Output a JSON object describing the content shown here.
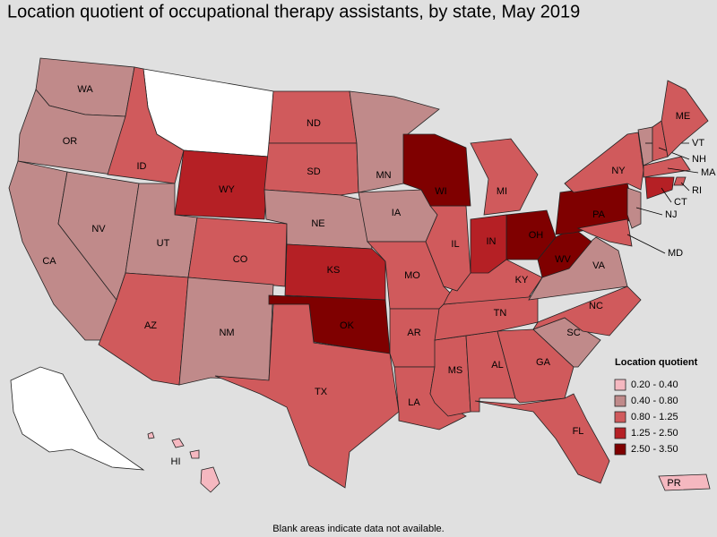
{
  "title": "Location quotient of occupational therapy assistants, by state, May 2019",
  "footnote": "Blank areas indicate data not available.",
  "legend": {
    "title": "Location quotient",
    "items": [
      {
        "label": "0.20 - 0.40",
        "color": "#f5b8c0"
      },
      {
        "label": "0.40 - 0.80",
        "color": "#c08a8a"
      },
      {
        "label": "0.80 - 1.25",
        "color": "#d05a5c"
      },
      {
        "label": "1.25 - 2.50",
        "color": "#b52025"
      },
      {
        "label": "2.50 - 3.50",
        "color": "#7f0000"
      }
    ]
  },
  "states": [
    {
      "label": "WA",
      "color": "#c08a8a"
    },
    {
      "label": "OR",
      "color": "#c08a8a"
    },
    {
      "label": "CA",
      "color": "#c08a8a"
    },
    {
      "label": "NV",
      "color": "#c08a8a"
    },
    {
      "label": "ID",
      "color": "#d05a5c"
    },
    {
      "label": "WY",
      "color": "#b52025"
    },
    {
      "label": "UT",
      "color": "#c08a8a"
    },
    {
      "label": "CO",
      "color": "#d05a5c"
    },
    {
      "label": "AZ",
      "color": "#d05a5c"
    },
    {
      "label": "NM",
      "color": "#c08a8a"
    },
    {
      "label": "ND",
      "color": "#d05a5c"
    },
    {
      "label": "SD",
      "color": "#d05a5c"
    },
    {
      "label": "NE",
      "color": "#c08a8a"
    },
    {
      "label": "KS",
      "color": "#b52025"
    },
    {
      "label": "OK",
      "color": "#7f0000"
    },
    {
      "label": "TX",
      "color": "#d05a5c"
    },
    {
      "label": "MN",
      "color": "#c08a8a"
    },
    {
      "label": "IA",
      "color": "#c08a8a"
    },
    {
      "label": "MO",
      "color": "#d05a5c"
    },
    {
      "label": "AR",
      "color": "#d05a5c"
    },
    {
      "label": "LA",
      "color": "#d05a5c"
    },
    {
      "label": "MS",
      "color": "#d05a5c"
    },
    {
      "label": "AL",
      "color": "#d05a5c"
    },
    {
      "label": "GA",
      "color": "#d05a5c"
    },
    {
      "label": "FL",
      "color": "#d05a5c"
    },
    {
      "label": "SC",
      "color": "#c08a8a"
    },
    {
      "label": "NC",
      "color": "#d05a5c"
    },
    {
      "label": "TN",
      "color": "#d05a5c"
    },
    {
      "label": "KY",
      "color": "#d05a5c"
    },
    {
      "label": "VA",
      "color": "#c08a8a"
    },
    {
      "label": "WV",
      "color": "#7f0000"
    },
    {
      "label": "OH",
      "color": "#7f0000"
    },
    {
      "label": "IN",
      "color": "#b52025"
    },
    {
      "label": "IL",
      "color": "#d05a5c"
    },
    {
      "label": "WI",
      "color": "#7f0000"
    },
    {
      "label": "MI",
      "color": "#d05a5c"
    },
    {
      "label": "PA",
      "color": "#7f0000"
    },
    {
      "label": "NY",
      "color": "#d05a5c"
    },
    {
      "label": "NJ",
      "color": "#c08a8a"
    },
    {
      "label": "MD",
      "color": "#d05a5c"
    },
    {
      "label": "VT",
      "color": "#c08a8a"
    },
    {
      "label": "NH",
      "color": "#d05a5c"
    },
    {
      "label": "ME",
      "color": "#d05a5c"
    },
    {
      "label": "MA",
      "color": "#d05a5c"
    },
    {
      "label": "RI",
      "color": "#d05a5c"
    },
    {
      "label": "CT",
      "color": "#b52025"
    },
    {
      "label": "HI",
      "color": "#f5b8c0"
    },
    {
      "label": "PR",
      "color": "#f5b8c0"
    }
  ]
}
